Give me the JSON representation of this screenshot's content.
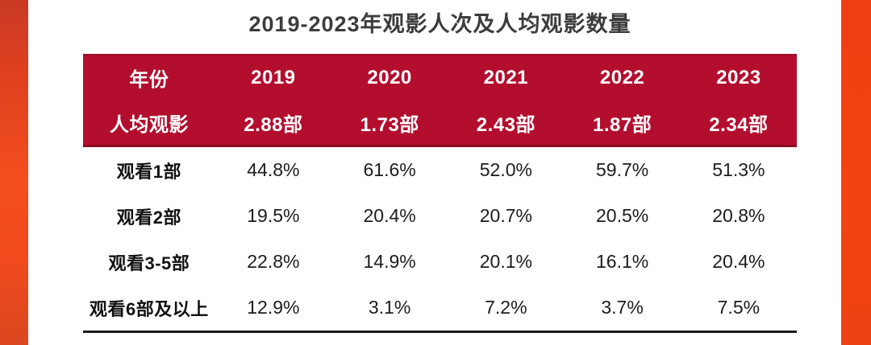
{
  "page": {
    "title": "2019-2023年观影人次及人均观影数量"
  },
  "colors": {
    "header_bg": "#b40e2e",
    "header_border_bottom": "#8f0b26",
    "accent_left": "#f34e1d",
    "accent_right": "#f44310",
    "title_text": "#3c3c3c",
    "body_text": "#1c1c1c",
    "bottom_rule": "#1a1a1a"
  },
  "table": {
    "header": {
      "year_label": "年份",
      "years": [
        "2019",
        "2020",
        "2021",
        "2022",
        "2023"
      ],
      "avg_label": "人均观影",
      "avg_values": [
        "2.88部",
        "1.73部",
        "2.43部",
        "1.87部",
        "2.34部"
      ]
    },
    "rows": [
      {
        "label": "观看1部",
        "values": [
          "44.8%",
          "61.6%",
          "52.0%",
          "59.7%",
          "51.3%"
        ]
      },
      {
        "label": "观看2部",
        "values": [
          "19.5%",
          "20.4%",
          "20.7%",
          "20.5%",
          "20.8%"
        ]
      },
      {
        "label": "观看3-5部",
        "values": [
          "22.8%",
          "14.9%",
          "20.1%",
          "16.1%",
          "20.4%"
        ]
      },
      {
        "label": "观看6部及以上",
        "values": [
          "12.9%",
          "3.1%",
          "7.2%",
          "3.7%",
          "7.5%"
        ]
      }
    ]
  },
  "chart_data": {
    "type": "table",
    "title": "2019-2023年观影人次及人均观影数量",
    "columns": [
      "年份",
      "2019",
      "2020",
      "2021",
      "2022",
      "2023"
    ],
    "rows": [
      [
        "人均观影",
        "2.88部",
        "1.73部",
        "2.43部",
        "1.87部",
        "2.34部"
      ],
      [
        "观看1部",
        "44.8%",
        "61.6%",
        "52.0%",
        "59.7%",
        "51.3%"
      ],
      [
        "观看2部",
        "19.5%",
        "20.4%",
        "20.7%",
        "20.5%",
        "20.8%"
      ],
      [
        "观看3-5部",
        "22.8%",
        "14.9%",
        "20.1%",
        "16.1%",
        "20.4%"
      ],
      [
        "观看6部及以上",
        "12.9%",
        "3.1%",
        "7.2%",
        "3.7%",
        "7.5%"
      ]
    ],
    "per_capita_viewing_films": {
      "2019": 2.88,
      "2020": 1.73,
      "2021": 2.43,
      "2022": 1.87,
      "2023": 2.34
    },
    "share_watched_1_film_pct": {
      "2019": 44.8,
      "2020": 61.6,
      "2021": 52.0,
      "2022": 59.7,
      "2023": 51.3
    },
    "share_watched_2_films_pct": {
      "2019": 19.5,
      "2020": 20.4,
      "2021": 20.7,
      "2022": 20.5,
      "2023": 20.8
    },
    "share_watched_3_5_films_pct": {
      "2019": 22.8,
      "2020": 14.9,
      "2021": 20.1,
      "2022": 16.1,
      "2023": 20.4
    },
    "share_watched_6_plus_films_pct": {
      "2019": 12.9,
      "2020": 3.1,
      "2021": 7.2,
      "2022": 3.7,
      "2023": 7.5
    }
  }
}
